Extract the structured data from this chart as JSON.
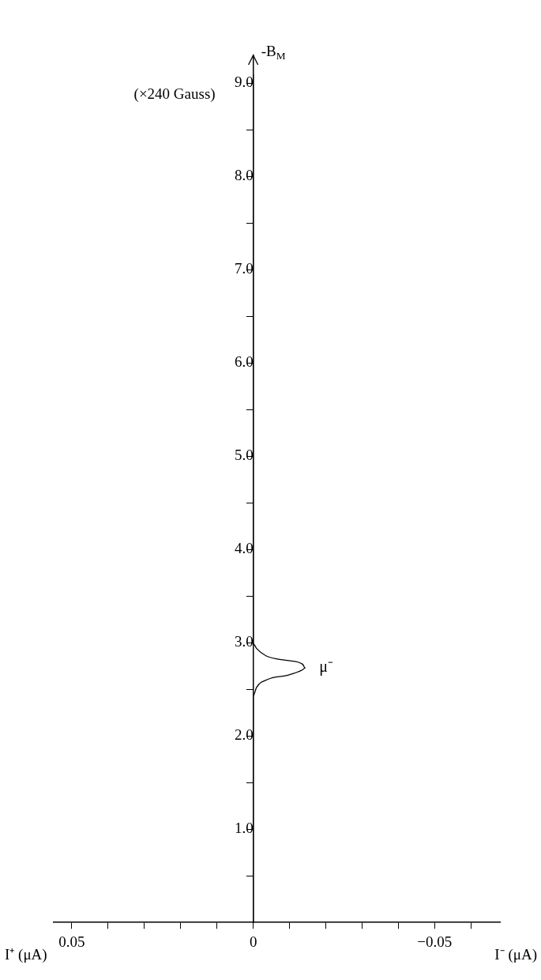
{
  "chart_data": {
    "type": "line",
    "orientation": "horizontal",
    "xlabel": "I⁺ (μA)",
    "ylabel": "(×240 Gauss)",
    "annotations": [
      "I⁻ (μA)",
      "-B$_{M}$"
    ],
    "series": [
      {
        "name": "μ⁻",
        "color": "#000000",
        "x": [
          0,
          2.43,
          2.52,
          2.61,
          2.65,
          2.71,
          2.73,
          2.77,
          2.81,
          2.86,
          2.94,
          2.99,
          9.1
        ],
        "values": [
          0,
          0,
          -0.0009,
          -0.0042,
          -0.0093,
          -0.0136,
          -0.0143,
          -0.0136,
          -0.0093,
          -0.0035,
          -0.0009,
          0,
          0
        ]
      }
    ],
    "xlim": [
      0.055,
      -0.068
    ],
    "xticks": [
      0.05,
      {
        "value": 0.04,
        "label": null
      },
      {
        "value": 0.03,
        "label": null
      },
      {
        "value": 0.02,
        "label": null
      },
      {
        "value": 0.01,
        "label": null
      },
      0,
      {
        "value": -0.01,
        "label": null
      },
      {
        "value": -0.02,
        "label": null
      },
      {
        "value": -0.03,
        "label": null
      },
      {
        "value": -0.04,
        "label": null
      },
      {
        "value": -0.05,
        "label": "−0.05"
      },
      {
        "value": -0.06,
        "label": null
      }
    ],
    "ylim": [
      0,
      9.3
    ],
    "yticks": [
      {
        "value": 0.5,
        "label": null
      },
      {
        "value": 1,
        "label": "1.0"
      },
      {
        "value": 1.5,
        "label": null
      },
      {
        "value": 2,
        "label": "2.0"
      },
      {
        "value": 2.5,
        "label": null
      },
      {
        "value": 3,
        "label": "3.0"
      },
      {
        "value": 3.5,
        "label": null
      },
      {
        "value": 4,
        "label": "4.0"
      },
      {
        "value": 4.5,
        "label": null
      },
      {
        "value": 5,
        "label": "5.0"
      },
      {
        "value": 5.5,
        "label": null
      },
      {
        "value": 6,
        "label": "6.0"
      },
      {
        "value": 6.5,
        "label": null
      },
      {
        "value": 7,
        "label": "7.0"
      },
      {
        "value": 7.5,
        "label": null
      },
      {
        "value": 8,
        "label": "8.0"
      },
      {
        "value": 8.5,
        "label": null
      },
      {
        "value": 9,
        "label": "9.0"
      }
    ],
    "grid": false,
    "legend": false,
    "marker": "none",
    "line_style": "solid"
  }
}
